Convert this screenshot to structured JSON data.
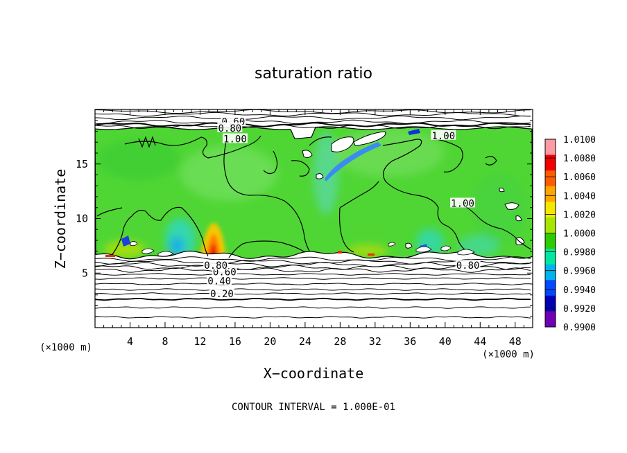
{
  "chart_data": {
    "type": "heatmap",
    "title": "saturation ratio",
    "xlabel": "X−coordinate",
    "ylabel": "Z−coordinate",
    "x_unit": "(×1000 m)",
    "y_unit": "(×1000 m)",
    "footer": "CONTOUR INTERVAL = 1.000E-01",
    "xlim": [
      0,
      50
    ],
    "ylim": [
      0,
      20
    ],
    "x_ticks": [
      4,
      8,
      12,
      16,
      20,
      24,
      28,
      32,
      36,
      40,
      44,
      48
    ],
    "y_ticks": [
      5,
      10,
      15
    ],
    "colorbar": {
      "levels": [
        "1.0100",
        "1.0080",
        "1.0060",
        "1.0040",
        "1.0020",
        "1.0000",
        "0.9980",
        "0.9960",
        "0.9940",
        "0.9920",
        "0.9900"
      ],
      "colors": [
        "#ff9aa2",
        "#f00000",
        "#ff5a00",
        "#ffa500",
        "#f5e600",
        "#a8e600",
        "#2ccc00",
        "#00e8a0",
        "#00b4f0",
        "#0048ff",
        "#0000b4",
        "#7000b4"
      ]
    },
    "contour_labels": [
      {
        "text": "0.20",
        "x": 14.5,
        "z": 3.1
      },
      {
        "text": "0.40",
        "x": 14.2,
        "z": 4.3
      },
      {
        "text": "0.60",
        "x": 14.8,
        "z": 5.1
      },
      {
        "text": "0.80",
        "x": 13.8,
        "z": 5.7
      },
      {
        "text": "0.80",
        "x": 42.6,
        "z": 5.7
      },
      {
        "text": "0.60",
        "x": 15.8,
        "z": 18.9
      },
      {
        "text": "0.80",
        "x": 15.4,
        "z": 18.3
      },
      {
        "text": "1.00",
        "x": 16.0,
        "z": 17.3
      },
      {
        "text": "1.00",
        "x": 39.8,
        "z": 17.6
      },
      {
        "text": "1.00",
        "x": 42.0,
        "z": 11.4
      }
    ]
  }
}
